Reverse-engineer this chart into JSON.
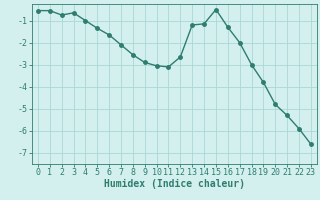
{
  "xlabel": "Humidex (Indice chaleur)",
  "x": [
    0,
    1,
    2,
    3,
    4,
    5,
    6,
    7,
    8,
    9,
    10,
    11,
    12,
    13,
    14,
    15,
    16,
    17,
    18,
    19,
    20,
    21,
    22,
    23
  ],
  "y": [
    -0.55,
    -0.55,
    -0.75,
    -0.65,
    -1.0,
    -1.35,
    -1.65,
    -2.1,
    -2.55,
    -2.9,
    -3.05,
    -3.1,
    -2.65,
    -1.2,
    -1.15,
    -0.5,
    -1.3,
    -2.0,
    -3.0,
    -3.8,
    -4.8,
    -5.3,
    -5.9,
    -6.6
  ],
  "line_color": "#2e7d6e",
  "marker_color": "#2e7d6e",
  "bg_color": "#d4f0ee",
  "grid_color": "#aad8d4",
  "ylim": [
    -7.5,
    -0.25
  ],
  "xlim": [
    -0.5,
    23.5
  ],
  "yticks": [
    -7,
    -6,
    -5,
    -4,
    -3,
    -2,
    -1
  ],
  "xticks": [
    0,
    1,
    2,
    3,
    4,
    5,
    6,
    7,
    8,
    9,
    10,
    11,
    12,
    13,
    14,
    15,
    16,
    17,
    18,
    19,
    20,
    21,
    22,
    23
  ],
  "tick_fontsize": 6,
  "xlabel_fontsize": 7,
  "linewidth": 1.0,
  "markersize": 2.5
}
